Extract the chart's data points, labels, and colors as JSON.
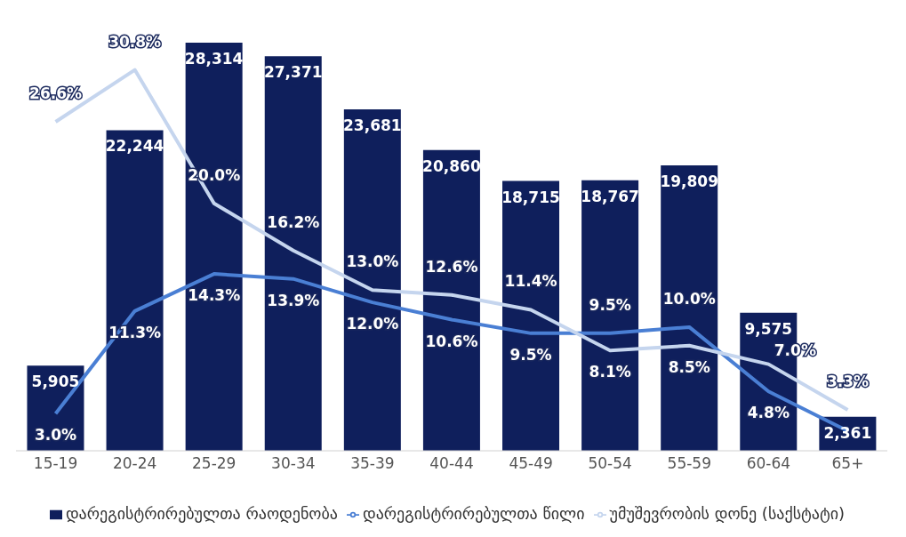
{
  "chart_data": {
    "type": "bar",
    "categories": [
      "15-19",
      "20-24",
      "25-29",
      "30-34",
      "35-39",
      "40-44",
      "45-49",
      "50-54",
      "55-59",
      "60-64",
      "65+"
    ],
    "series": [
      {
        "name": "დარეგისტრირებულთა რაოდენობა",
        "type": "bar",
        "color": "#0f1f5c",
        "values": [
          5905,
          22244,
          28314,
          27371,
          23681,
          20860,
          18715,
          18767,
          19809,
          9575,
          2361
        ],
        "value_labels": [
          "5,905",
          "22,244",
          "28,314",
          "27,371",
          "23,681",
          "20,860",
          "18,715",
          "18,767",
          "19,809",
          "9,575",
          "2,361"
        ]
      },
      {
        "name": "დარეგისტრირებულთა წილი",
        "type": "line",
        "axis": "y2",
        "color": "#4a7fd4",
        "values": [
          3.0,
          11.3,
          14.3,
          13.9,
          12.0,
          10.6,
          9.5,
          9.5,
          10.0,
          4.8,
          1.6
        ],
        "value_labels": [
          "3.0%",
          "11.3%",
          "14.3%",
          "13.9%",
          "12.0%",
          "10.6%",
          "9.5%",
          "9.5%",
          "10.0%",
          "4.8%",
          null
        ]
      },
      {
        "name": "უმუშევრობის დონე (საქსტატი)",
        "type": "line",
        "axis": "y2",
        "color": "#c5d5ee",
        "values": [
          26.6,
          30.8,
          20.0,
          16.2,
          13.0,
          12.6,
          11.4,
          8.1,
          8.5,
          7.0,
          3.3
        ],
        "value_labels": [
          "26.6%",
          "30.8%",
          "20.0%",
          "16.2%",
          "13.0%",
          "12.6%",
          "11.4%",
          "8.1%",
          "8.5%",
          "7.0%",
          "3.3%"
        ]
      }
    ],
    "ylim": [
      0,
      28314
    ],
    "y2lim": [
      0,
      33
    ],
    "tick_labels": "x",
    "legend": "bottom",
    "marker": "none",
    "grid": false
  }
}
